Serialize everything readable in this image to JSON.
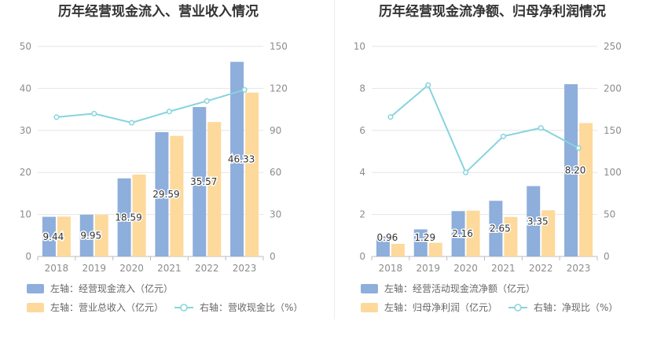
{
  "colors": {
    "bar_left": "#8eaedc",
    "bar_right": "#fdd99b",
    "line": "#87d4de"
  },
  "chart_data": [
    {
      "type": "bar",
      "title": "历年经营现金流入、营业收入情况",
      "categories": [
        "2018",
        "2019",
        "2020",
        "2021",
        "2022",
        "2023"
      ],
      "y_left": {
        "ticks": [
          "0",
          "10",
          "20",
          "30",
          "40",
          "50"
        ],
        "ylim": [
          0,
          50
        ]
      },
      "y_right": {
        "ticks": [
          "0",
          "30",
          "60",
          "90",
          "120",
          "150"
        ],
        "ylim": [
          0,
          150
        ]
      },
      "series": [
        {
          "name": "左轴：经营现金流入（亿元）",
          "type": "bar",
          "axis": "left",
          "values": [
            9.44,
            9.95,
            18.59,
            29.59,
            35.57,
            46.33
          ],
          "labels": [
            "9.44",
            "9.95",
            "18.59",
            "29.59",
            "35.57",
            "46.33"
          ]
        },
        {
          "name": "左轴：营业总收入（亿元）",
          "type": "bar",
          "axis": "left",
          "values": [
            9.5,
            9.9,
            19.5,
            28.7,
            32.0,
            39.0
          ]
        },
        {
          "name": "右轴：营收现金比（%）",
          "type": "line",
          "axis": "right",
          "values": [
            99.5,
            102,
            95.5,
            103.5,
            111,
            119
          ]
        }
      ]
    },
    {
      "type": "bar",
      "title": "历年经营现金流净额、归母净利润情况",
      "categories": [
        "2018",
        "2019",
        "2020",
        "2021",
        "2022",
        "2023"
      ],
      "y_left": {
        "ticks": [
          "0",
          "2",
          "4",
          "6",
          "8",
          "10"
        ],
        "ylim": [
          0,
          10
        ]
      },
      "y_right": {
        "ticks": [
          "0",
          "50",
          "100",
          "150",
          "200",
          "250"
        ],
        "ylim": [
          0,
          250
        ]
      },
      "series": [
        {
          "name": "左轴：经营活动现金流净额（亿元）",
          "type": "bar",
          "axis": "left",
          "values": [
            0.96,
            1.29,
            2.16,
            2.65,
            3.35,
            8.2
          ],
          "labels": [
            "0.96",
            "1.29",
            "2.16",
            "2.65",
            "3.35",
            "8.20"
          ]
        },
        {
          "name": "左轴：归母净利润（亿元）",
          "type": "bar",
          "axis": "left",
          "values": [
            0.6,
            0.65,
            2.18,
            1.88,
            2.2,
            6.35
          ]
        },
        {
          "name": "右轴：净现比（%）",
          "type": "line",
          "axis": "right",
          "values": [
            166,
            204,
            100,
            143,
            153,
            129
          ]
        }
      ]
    }
  ]
}
